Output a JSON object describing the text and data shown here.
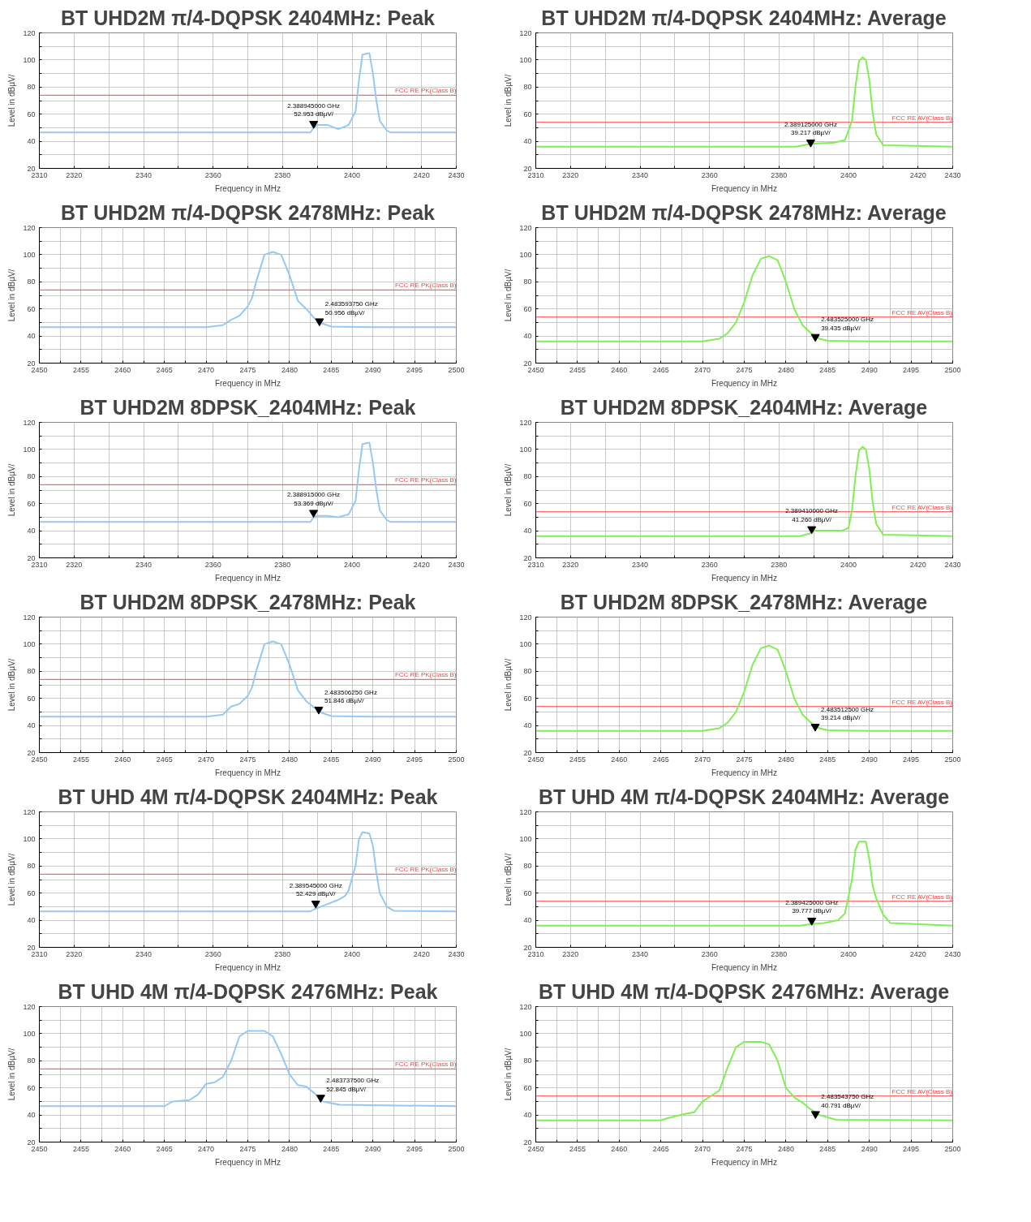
{
  "chart_data": [
    {
      "type": "line",
      "title": "BT UHD2M π/4-DQPSK 2404MHz: Peak",
      "xlabel": "Frequency in MHz",
      "ylabel": "Level in dBµV/",
      "xlim": [
        2310,
        2430
      ],
      "ylim": [
        20,
        120
      ],
      "xticks": [
        2310,
        2320,
        {
          "value": 2330,
          "label": null
        },
        2340,
        {
          "value": 2350,
          "label": null
        },
        2360,
        {
          "value": 2370,
          "label": null
        },
        2380,
        {
          "value": 2390,
          "label": null
        },
        2400,
        {
          "value": 2410,
          "label": null
        },
        2420,
        2430
      ],
      "yticks": [
        20,
        {
          "value": 30,
          "label": null
        },
        40,
        {
          "value": 50,
          "label": null
        },
        60,
        {
          "value": 70,
          "label": null
        },
        80,
        {
          "value": 90,
          "label": null
        },
        100,
        {
          "value": 110,
          "label": null
        },
        120
      ],
      "grid": true,
      "series": [
        {
          "color": "#94c8f5",
          "x": [
            2310,
            2330,
            2350,
            2370,
            2388,
            2389,
            2390,
            2393,
            2396,
            2399,
            2401,
            2402,
            2403,
            2405,
            2406,
            2407,
            2408,
            2410,
            2411,
            2430
          ],
          "values": [
            46.5,
            46.5,
            46.5,
            46.5,
            46.5,
            50,
            52,
            52,
            49,
            52,
            62,
            85,
            104,
            105,
            90,
            70,
            55,
            48,
            46.5,
            46.5
          ]
        }
      ],
      "ref_lines": [
        {
          "axis": "y",
          "value": 74,
          "label": "FCC RE PK(Class B)",
          "color": "#ff4040"
        }
      ],
      "annotations": [
        {
          "text": "2.388945000 GHz\n52.953 dBµV/",
          "x": 2388.945,
          "y": 52.953
        }
      ]
    },
    {
      "type": "line",
      "title": "BT UHD2M π/4-DQPSK 2404MHz: Average",
      "xlabel": "Frequency in MHz",
      "ylabel": "Level in dBµV/",
      "xlim": [
        2310,
        2430
      ],
      "ylim": [
        20,
        120
      ],
      "xticks": [
        2310,
        2320,
        {
          "value": 2330,
          "label": null
        },
        2340,
        {
          "value": 2350,
          "label": null
        },
        2360,
        {
          "value": 2370,
          "label": null
        },
        2380,
        {
          "value": 2390,
          "label": null
        },
        2400,
        {
          "value": 2410,
          "label": null
        },
        2420,
        2430
      ],
      "yticks": [
        20,
        {
          "value": 30,
          "label": null
        },
        40,
        {
          "value": 50,
          "label": null
        },
        60,
        {
          "value": 70,
          "label": null
        },
        80,
        {
          "value": 90,
          "label": null
        },
        100,
        {
          "value": 110,
          "label": null
        },
        120
      ],
      "grid": true,
      "series": [
        {
          "color": "#80ee55",
          "x": [
            2310,
            2330,
            2350,
            2370,
            2385,
            2389,
            2392,
            2396,
            2399,
            2401,
            2402,
            2403,
            2404,
            2405,
            2406,
            2407,
            2408,
            2410,
            2430
          ],
          "values": [
            36,
            36,
            36,
            36,
            36,
            38,
            38.5,
            39,
            41,
            55,
            80,
            99,
            102,
            100,
            85,
            60,
            45,
            37,
            36
          ]
        }
      ],
      "ref_lines": [
        {
          "axis": "y",
          "value": 54,
          "label": "FCC RE AV(Class B)",
          "color": "#ff4040"
        }
      ],
      "annotations": [
        {
          "text": "2.389125000 GHz\n39.217 dBµV/",
          "x": 2389.125,
          "y": 39.217
        }
      ]
    },
    {
      "type": "line",
      "title": "BT UHD2M π/4-DQPSK 2478MHz: Peak",
      "xlabel": "Frequency in MHz",
      "ylabel": "Level in dBµV/",
      "xlim": [
        2450,
        2500
      ],
      "ylim": [
        20,
        120
      ],
      "xticks": [
        2450,
        {
          "value": 2452.5,
          "label": null
        },
        2455,
        {
          "value": 2457.5,
          "label": null
        },
        2460,
        {
          "value": 2462.5,
          "label": null
        },
        2465,
        {
          "value": 2467.5,
          "label": null
        },
        2470,
        {
          "value": 2472.5,
          "label": null
        },
        2475,
        {
          "value": 2477.5,
          "label": null
        },
        2480,
        {
          "value": 2482.5,
          "label": null
        },
        2485,
        {
          "value": 2487.5,
          "label": null
        },
        2490,
        {
          "value": 2492.5,
          "label": null
        },
        2495,
        {
          "value": 2497.5,
          "label": null
        },
        2500
      ],
      "yticks": [
        20,
        {
          "value": 30,
          "label": null
        },
        40,
        {
          "value": 50,
          "label": null
        },
        60,
        {
          "value": 70,
          "label": null
        },
        80,
        {
          "value": 90,
          "label": null
        },
        100,
        {
          "value": 110,
          "label": null
        },
        120
      ],
      "grid": true,
      "series": [
        {
          "color": "#94c8f5",
          "x": [
            2450,
            2460,
            2470,
            2472,
            2473,
            2474,
            2475,
            2475.5,
            2476,
            2477,
            2478,
            2479,
            2480,
            2481,
            2482,
            2483,
            2484,
            2485,
            2490,
            2500
          ],
          "values": [
            46.5,
            46.5,
            46.5,
            48,
            52,
            55,
            62,
            68,
            80,
            100,
            102,
            100,
            85,
            66,
            60,
            53,
            49,
            47,
            46.5,
            46.5
          ]
        }
      ],
      "ref_lines": [
        {
          "axis": "y",
          "value": 74,
          "label": "FCC RE PK(Class B)",
          "color": "#ff4040"
        }
      ],
      "annotations": [
        {
          "text": "2.483593750 GHz\n50.956 dBµV/",
          "x": 2483.59375,
          "y": 50.956
        }
      ]
    },
    {
      "type": "line",
      "title": "BT UHD2M π/4-DQPSK 2478MHz: Average",
      "xlabel": "Frequency in MHz",
      "ylabel": "Level in dBµV/",
      "xlim": [
        2450,
        2500
      ],
      "ylim": [
        20,
        120
      ],
      "xticks": [
        2450,
        {
          "value": 2452.5,
          "label": null
        },
        2455,
        {
          "value": 2457.5,
          "label": null
        },
        2460,
        {
          "value": 2462.5,
          "label": null
        },
        2465,
        {
          "value": 2467.5,
          "label": null
        },
        2470,
        {
          "value": 2472.5,
          "label": null
        },
        2475,
        {
          "value": 2477.5,
          "label": null
        },
        2480,
        {
          "value": 2482.5,
          "label": null
        },
        2485,
        {
          "value": 2487.5,
          "label": null
        },
        2490,
        {
          "value": 2492.5,
          "label": null
        },
        2495,
        {
          "value": 2497.5,
          "label": null
        },
        2500
      ],
      "yticks": [
        20,
        {
          "value": 30,
          "label": null
        },
        40,
        {
          "value": 50,
          "label": null
        },
        60,
        {
          "value": 70,
          "label": null
        },
        80,
        {
          "value": 90,
          "label": null
        },
        100,
        {
          "value": 110,
          "label": null
        },
        120
      ],
      "grid": true,
      "series": [
        {
          "color": "#80ee55",
          "x": [
            2450,
            2460,
            2470,
            2472,
            2473,
            2474,
            2475,
            2476,
            2477,
            2478,
            2479,
            2480,
            2481,
            2482,
            2483,
            2484,
            2485,
            2490,
            2500
          ],
          "values": [
            36,
            36,
            36,
            38,
            42,
            50,
            65,
            85,
            97,
            99,
            96,
            80,
            60,
            48,
            42,
            38,
            36.5,
            36,
            36
          ]
        }
      ],
      "ref_lines": [
        {
          "axis": "y",
          "value": 54,
          "label": "FCC RE AV(Class B)",
          "color": "#ff4040"
        }
      ],
      "annotations": [
        {
          "text": "2.483525000 GHz\n39.435 dBµV/",
          "x": 2483.525,
          "y": 39.435
        }
      ]
    },
    {
      "type": "line",
      "title": "BT UHD2M 8DPSK_2404MHz: Peak",
      "xlabel": "Frequency in MHz",
      "ylabel": "Level in dBµV/",
      "xlim": [
        2310,
        2430
      ],
      "ylim": [
        20,
        120
      ],
      "xticks": [
        2310,
        2320,
        {
          "value": 2330,
          "label": null
        },
        2340,
        {
          "value": 2350,
          "label": null
        },
        2360,
        {
          "value": 2370,
          "label": null
        },
        2380,
        {
          "value": 2390,
          "label": null
        },
        2400,
        {
          "value": 2410,
          "label": null
        },
        2420,
        2430
      ],
      "yticks": [
        20,
        {
          "value": 30,
          "label": null
        },
        40,
        {
          "value": 50,
          "label": null
        },
        60,
        {
          "value": 70,
          "label": null
        },
        80,
        {
          "value": 90,
          "label": null
        },
        100,
        {
          "value": 110,
          "label": null
        },
        120
      ],
      "grid": true,
      "series": [
        {
          "color": "#94c8f5",
          "x": [
            2310,
            2330,
            2350,
            2370,
            2388,
            2389,
            2390,
            2393,
            2396,
            2399,
            2401,
            2402,
            2403,
            2405,
            2406,
            2407,
            2408,
            2410,
            2411,
            2430
          ],
          "values": [
            46.5,
            46.5,
            46.5,
            46.5,
            46.5,
            50,
            51,
            51,
            50,
            52,
            62,
            85,
            104,
            105,
            90,
            70,
            55,
            48,
            46.5,
            46.5
          ]
        }
      ],
      "ref_lines": [
        {
          "axis": "y",
          "value": 74,
          "label": "FCC RE PK(Class B)",
          "color": "#ff4040"
        }
      ],
      "annotations": [
        {
          "text": "2.388915000 GHz\n53.369 dBµV/",
          "x": 2388.915,
          "y": 53.369
        }
      ]
    },
    {
      "type": "line",
      "title": "BT UHD2M 8DPSK_2404MHz: Average",
      "xlabel": "Frequency in MHz",
      "ylabel": "Level in dBµV/",
      "xlim": [
        2310,
        2430
      ],
      "ylim": [
        20,
        120
      ],
      "xticks": [
        2310,
        2320,
        {
          "value": 2330,
          "label": null
        },
        2340,
        {
          "value": 2350,
          "label": null
        },
        2360,
        {
          "value": 2370,
          "label": null
        },
        2380,
        {
          "value": 2390,
          "label": null
        },
        2400,
        {
          "value": 2410,
          "label": null
        },
        2420,
        2430
      ],
      "yticks": [
        20,
        {
          "value": 30,
          "label": null
        },
        40,
        {
          "value": 50,
          "label": null
        },
        60,
        {
          "value": 70,
          "label": null
        },
        80,
        {
          "value": 90,
          "label": null
        },
        100,
        {
          "value": 110,
          "label": null
        },
        120
      ],
      "grid": true,
      "series": [
        {
          "color": "#80ee55",
          "x": [
            2310,
            2330,
            2350,
            2370,
            2386,
            2389,
            2390,
            2394,
            2398,
            2400,
            2401,
            2402,
            2403,
            2404,
            2405,
            2406,
            2407,
            2408,
            2410,
            2430
          ],
          "values": [
            36,
            36,
            36,
            36,
            36,
            38,
            40,
            40,
            40,
            42,
            55,
            80,
            99,
            102,
            100,
            85,
            60,
            45,
            37,
            36
          ]
        }
      ],
      "ref_lines": [
        {
          "axis": "y",
          "value": 54,
          "label": "FCC RE AV(Class B)",
          "color": "#ff4040"
        }
      ],
      "annotations": [
        {
          "text": "2.389410000 GHz\n41.260 dBµV/",
          "x": 2389.41,
          "y": 41.26
        }
      ]
    },
    {
      "type": "line",
      "title": "BT UHD2M 8DPSK_2478MHz: Peak",
      "xlabel": "Frequency in MHz",
      "ylabel": "Level in dBµV/",
      "xlim": [
        2450,
        2500
      ],
      "ylim": [
        20,
        120
      ],
      "xticks": [
        2450,
        {
          "value": 2452.5,
          "label": null
        },
        2455,
        {
          "value": 2457.5,
          "label": null
        },
        2460,
        {
          "value": 2462.5,
          "label": null
        },
        2465,
        {
          "value": 2467.5,
          "label": null
        },
        2470,
        {
          "value": 2472.5,
          "label": null
        },
        2475,
        {
          "value": 2477.5,
          "label": null
        },
        2480,
        {
          "value": 2482.5,
          "label": null
        },
        2485,
        {
          "value": 2487.5,
          "label": null
        },
        2490,
        {
          "value": 2492.5,
          "label": null
        },
        2495,
        {
          "value": 2497.5,
          "label": null
        },
        2500
      ],
      "yticks": [
        20,
        {
          "value": 30,
          "label": null
        },
        40,
        {
          "value": 50,
          "label": null
        },
        60,
        {
          "value": 70,
          "label": null
        },
        80,
        {
          "value": 90,
          "label": null
        },
        100,
        {
          "value": 110,
          "label": null
        },
        120
      ],
      "grid": true,
      "series": [
        {
          "color": "#94c8f5",
          "x": [
            2450,
            2460,
            2470,
            2472,
            2473,
            2474,
            2475,
            2475.5,
            2476,
            2477,
            2478,
            2479,
            2480,
            2481,
            2482,
            2483,
            2484,
            2485,
            2490,
            2500
          ],
          "values": [
            46.5,
            46.5,
            46.5,
            48,
            54,
            56,
            62,
            68,
            80,
            100,
            102,
            100,
            85,
            66,
            58,
            53,
            49,
            47,
            46.5,
            46.5
          ]
        }
      ],
      "ref_lines": [
        {
          "axis": "y",
          "value": 74,
          "label": "FCC RE PK(Class B)",
          "color": "#ff4040"
        }
      ],
      "annotations": [
        {
          "text": "2.483506250 GHz\n51.846 dBµV/",
          "x": 2483.50625,
          "y": 51.846
        }
      ]
    },
    {
      "type": "line",
      "title": "BT UHD2M 8DPSK_2478MHz: Average",
      "xlabel": "Frequency in MHz",
      "ylabel": "Level in dBµV/",
      "xlim": [
        2450,
        2500
      ],
      "ylim": [
        20,
        120
      ],
      "xticks": [
        2450,
        {
          "value": 2452.5,
          "label": null
        },
        2455,
        {
          "value": 2457.5,
          "label": null
        },
        2460,
        {
          "value": 2462.5,
          "label": null
        },
        2465,
        {
          "value": 2467.5,
          "label": null
        },
        2470,
        {
          "value": 2472.5,
          "label": null
        },
        2475,
        {
          "value": 2477.5,
          "label": null
        },
        2480,
        {
          "value": 2482.5,
          "label": null
        },
        2485,
        {
          "value": 2487.5,
          "label": null
        },
        2490,
        {
          "value": 2492.5,
          "label": null
        },
        2495,
        {
          "value": 2497.5,
          "label": null
        },
        2500
      ],
      "yticks": [
        20,
        {
          "value": 30,
          "label": null
        },
        40,
        {
          "value": 50,
          "label": null
        },
        60,
        {
          "value": 70,
          "label": null
        },
        80,
        {
          "value": 90,
          "label": null
        },
        100,
        {
          "value": 110,
          "label": null
        },
        120
      ],
      "grid": true,
      "series": [
        {
          "color": "#80ee55",
          "x": [
            2450,
            2460,
            2470,
            2472,
            2473,
            2474,
            2475,
            2476,
            2477,
            2478,
            2479,
            2480,
            2481,
            2482,
            2483,
            2484,
            2485,
            2490,
            2500
          ],
          "values": [
            36,
            36,
            36,
            38,
            42,
            50,
            65,
            85,
            97,
            99,
            96,
            80,
            60,
            48,
            42,
            38,
            36.5,
            36,
            36
          ]
        }
      ],
      "ref_lines": [
        {
          "axis": "y",
          "value": 54,
          "label": "FCC RE AV(Class B)",
          "color": "#ff4040"
        }
      ],
      "annotations": [
        {
          "text": "2.483512500 GHz\n39.214 dBµV/",
          "x": 2483.5125,
          "y": 39.214
        }
      ]
    },
    {
      "type": "line",
      "title": "BT UHD 4M π/4-DQPSK 2404MHz: Peak",
      "xlabel": "Frequency in MHz",
      "ylabel": "Level in dBµV/",
      "xlim": [
        2310,
        2430
      ],
      "ylim": [
        20,
        120
      ],
      "xticks": [
        2310,
        2320,
        {
          "value": 2330,
          "label": null
        },
        2340,
        {
          "value": 2350,
          "label": null
        },
        2360,
        {
          "value": 2370,
          "label": null
        },
        2380,
        {
          "value": 2390,
          "label": null
        },
        2400,
        {
          "value": 2410,
          "label": null
        },
        2420,
        2430
      ],
      "yticks": [
        20,
        {
          "value": 30,
          "label": null
        },
        40,
        {
          "value": 50,
          "label": null
        },
        60,
        {
          "value": 70,
          "label": null
        },
        80,
        {
          "value": 90,
          "label": null
        },
        100,
        {
          "value": 110,
          "label": null
        },
        120
      ],
      "grid": true,
      "series": [
        {
          "color": "#94c8f5",
          "x": [
            2310,
            2330,
            2350,
            2370,
            2388,
            2389,
            2391,
            2393,
            2396,
            2398,
            2399,
            2401,
            2402,
            2403,
            2405,
            2406,
            2407,
            2408,
            2409,
            2410,
            2412,
            2430
          ],
          "values": [
            46.5,
            46.5,
            46.5,
            46.5,
            46.5,
            48,
            50,
            52,
            55,
            58,
            62,
            80,
            100,
            105,
            104,
            95,
            75,
            60,
            55,
            50,
            47,
            46.5
          ]
        }
      ],
      "ref_lines": [
        {
          "axis": "y",
          "value": 74,
          "label": "FCC RE PK(Class B)",
          "color": "#ff4040"
        }
      ],
      "annotations": [
        {
          "text": "2.389545000 GHz\n52.429 dBµV/",
          "x": 2389.545,
          "y": 52.429
        }
      ]
    },
    {
      "type": "line",
      "title": "BT UHD 4M π/4-DQPSK 2404MHz: Average",
      "xlabel": "Frequency in MHz",
      "ylabel": "Level in dBµV/",
      "xlim": [
        2310,
        2430
      ],
      "ylim": [
        20,
        120
      ],
      "xticks": [
        2310,
        2320,
        {
          "value": 2330,
          "label": null
        },
        2340,
        {
          "value": 2350,
          "label": null
        },
        2360,
        {
          "value": 2370,
          "label": null
        },
        2380,
        {
          "value": 2390,
          "label": null
        },
        2400,
        {
          "value": 2410,
          "label": null
        },
        2420,
        2430
      ],
      "yticks": [
        20,
        {
          "value": 30,
          "label": null
        },
        40,
        {
          "value": 50,
          "label": null
        },
        60,
        {
          "value": 70,
          "label": null
        },
        80,
        {
          "value": 90,
          "label": null
        },
        100,
        {
          "value": 110,
          "label": null
        },
        120
      ],
      "grid": true,
      "series": [
        {
          "color": "#80ee55",
          "x": [
            2310,
            2330,
            2350,
            2370,
            2386,
            2389,
            2393,
            2397,
            2399,
            2401,
            2402,
            2403,
            2405,
            2406,
            2407,
            2408,
            2409,
            2410,
            2412,
            2430
          ],
          "values": [
            36,
            36,
            36,
            36,
            36,
            37,
            38,
            40,
            45,
            70,
            92,
            98,
            98,
            85,
            65,
            56,
            50,
            44,
            38,
            36
          ]
        }
      ],
      "ref_lines": [
        {
          "axis": "y",
          "value": 54,
          "label": "FCC RE AV(Class B)",
          "color": "#ff4040"
        }
      ],
      "annotations": [
        {
          "text": "2.389425000 GHz\n39.777 dBµV/",
          "x": 2389.425,
          "y": 39.777
        }
      ]
    },
    {
      "type": "line",
      "title": "BT UHD 4M π/4-DQPSK 2476MHz: Peak",
      "xlabel": "Frequency in MHz",
      "ylabel": "Level in dBµV/",
      "xlim": [
        2450,
        2500
      ],
      "ylim": [
        20,
        120
      ],
      "xticks": [
        2450,
        {
          "value": 2452.5,
          "label": null
        },
        2455,
        {
          "value": 2457.5,
          "label": null
        },
        2460,
        {
          "value": 2462.5,
          "label": null
        },
        2465,
        {
          "value": 2467.5,
          "label": null
        },
        2470,
        {
          "value": 2472.5,
          "label": null
        },
        2475,
        {
          "value": 2477.5,
          "label": null
        },
        2480,
        {
          "value": 2482.5,
          "label": null
        },
        2485,
        {
          "value": 2487.5,
          "label": null
        },
        2490,
        {
          "value": 2492.5,
          "label": null
        },
        2495,
        {
          "value": 2497.5,
          "label": null
        },
        2500
      ],
      "yticks": [
        20,
        {
          "value": 30,
          "label": null
        },
        40,
        {
          "value": 50,
          "label": null
        },
        60,
        {
          "value": 70,
          "label": null
        },
        80,
        {
          "value": 90,
          "label": null
        },
        100,
        {
          "value": 110,
          "label": null
        },
        120
      ],
      "grid": true,
      "series": [
        {
          "color": "#94c8f5",
          "x": [
            2450,
            2458,
            2465,
            2466,
            2468,
            2469,
            2470,
            2471,
            2472,
            2473,
            2474,
            2475,
            2477,
            2478,
            2479,
            2480,
            2481,
            2482,
            2483,
            2484,
            2486,
            2500
          ],
          "values": [
            46.5,
            46.5,
            46.5,
            50,
            51,
            55,
            63,
            64,
            68,
            80,
            98,
            102,
            102,
            98,
            85,
            70,
            62,
            61,
            56,
            50,
            47.5,
            46.5
          ]
        }
      ],
      "ref_lines": [
        {
          "axis": "y",
          "value": 74,
          "label": "FCC RE PK(Class B)",
          "color": "#ff4040"
        }
      ],
      "annotations": [
        {
          "text": "2.483737500 GHz\n52.845 dBµV/",
          "x": 2483.7375,
          "y": 52.845
        }
      ]
    },
    {
      "type": "line",
      "title": "BT UHD 4M π/4-DQPSK 2476MHz: Average",
      "xlabel": "Frequency in MHz",
      "ylabel": "Level in dBµV/",
      "xlim": [
        2450,
        2500
      ],
      "ylim": [
        20,
        120
      ],
      "xticks": [
        2450,
        {
          "value": 2452.5,
          "label": null
        },
        2455,
        {
          "value": 2457.5,
          "label": null
        },
        2460,
        {
          "value": 2462.5,
          "label": null
        },
        2465,
        {
          "value": 2467.5,
          "label": null
        },
        2470,
        {
          "value": 2472.5,
          "label": null
        },
        2475,
        {
          "value": 2477.5,
          "label": null
        },
        2480,
        {
          "value": 2482.5,
          "label": null
        },
        2485,
        {
          "value": 2487.5,
          "label": null
        },
        2490,
        {
          "value": 2492.5,
          "label": null
        },
        2495,
        {
          "value": 2497.5,
          "label": null
        },
        2500
      ],
      "yticks": [
        20,
        {
          "value": 30,
          "label": null
        },
        40,
        {
          "value": 50,
          "label": null
        },
        60,
        {
          "value": 70,
          "label": null
        },
        80,
        {
          "value": 90,
          "label": null
        },
        100,
        {
          "value": 110,
          "label": null
        },
        120
      ],
      "grid": true,
      "series": [
        {
          "color": "#80ee55",
          "x": [
            2450,
            2458,
            2465,
            2466,
            2468,
            2469,
            2470,
            2471,
            2472,
            2473,
            2474,
            2475,
            2477,
            2478,
            2479,
            2480,
            2481,
            2482,
            2483,
            2484,
            2486,
            2500
          ],
          "values": [
            36,
            36,
            36,
            38,
            41,
            42,
            50,
            54,
            58,
            75,
            90,
            94,
            94,
            92,
            80,
            60,
            53,
            49,
            44,
            40,
            36.5,
            36
          ]
        }
      ],
      "ref_lines": [
        {
          "axis": "y",
          "value": 54,
          "label": "FCC RE AV(Class B)",
          "color": "#ff4040"
        }
      ],
      "annotations": [
        {
          "text": "2.483543750 GHz\n40.791 dBµV/",
          "x": 2483.54375,
          "y": 40.791
        }
      ]
    }
  ]
}
